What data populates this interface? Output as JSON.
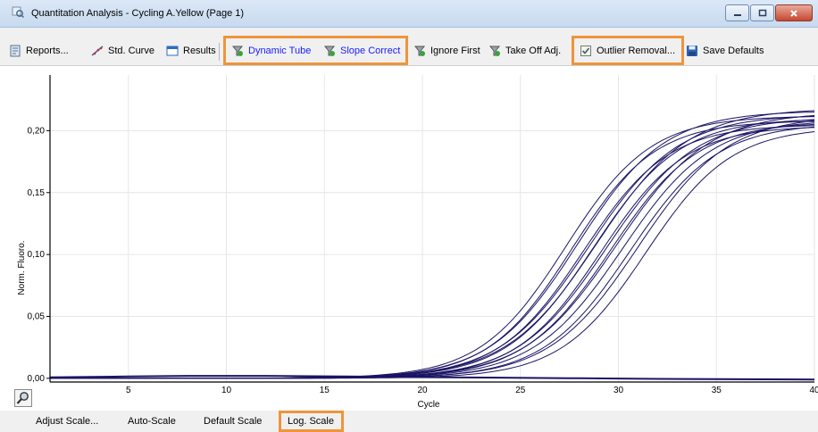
{
  "window": {
    "title": "Quantitation Analysis - Cycling A.Yellow (Page 1)"
  },
  "toolbar": {
    "reports": "Reports...",
    "std_curve": "Std. Curve",
    "results": "Results",
    "dynamic_tube": "Dynamic Tube",
    "slope_correct": "Slope Correct",
    "ignore_first": "Ignore First",
    "take_off_adj": "Take Off Adj.",
    "outlier_removal": "Outlier Removal...",
    "save_defaults": "Save Defaults"
  },
  "footer": {
    "adjust_scale": "Adjust Scale...",
    "auto_scale": "Auto-Scale",
    "default_scale": "Default Scale",
    "log_scale": "Log. Scale"
  },
  "colors": {
    "highlight": "#f0943a",
    "curve": "#1b1464",
    "active_toggle_text": "#1a1aff"
  },
  "chart_data": {
    "type": "line",
    "xlabel": "Cycle",
    "ylabel": "Norm. Fluoro.",
    "xlim": [
      1,
      40
    ],
    "ylim": [
      -0.003,
      0.245
    ],
    "xticks": [
      5,
      10,
      15,
      20,
      25,
      30,
      35,
      40
    ],
    "xtick_labels": [
      "5",
      "10",
      "15",
      "20",
      "25",
      "30",
      "35",
      "40"
    ],
    "yticks": [
      0.0,
      0.05,
      0.1,
      0.15,
      0.2
    ],
    "ytick_labels": [
      "0,00",
      "0,05",
      "0,10",
      "0,15",
      "0,20"
    ],
    "grid": true,
    "curve_params": [
      {
        "L": 0.212,
        "c": 27.3,
        "k": 0.46
      },
      {
        "L": 0.208,
        "c": 27.6,
        "k": 0.47
      },
      {
        "L": 0.216,
        "c": 27.9,
        "k": 0.45
      },
      {
        "L": 0.205,
        "c": 28.2,
        "k": 0.46
      },
      {
        "L": 0.213,
        "c": 28.5,
        "k": 0.44
      },
      {
        "L": 0.21,
        "c": 28.7,
        "k": 0.45
      },
      {
        "L": 0.218,
        "c": 28.9,
        "k": 0.43
      },
      {
        "L": 0.204,
        "c": 29.1,
        "k": 0.46
      },
      {
        "L": 0.211,
        "c": 29.4,
        "k": 0.44
      },
      {
        "L": 0.207,
        "c": 29.6,
        "k": 0.45
      },
      {
        "L": 0.215,
        "c": 29.9,
        "k": 0.43
      },
      {
        "L": 0.209,
        "c": 30.2,
        "k": 0.44
      },
      {
        "L": 0.206,
        "c": 30.6,
        "k": 0.45
      },
      {
        "L": 0.212,
        "c": 31.0,
        "k": 0.44
      },
      {
        "L": 0.203,
        "c": 31.4,
        "k": 0.46
      }
    ],
    "flat_series": [
      {
        "name": "baseline",
        "x": [
          1,
          5,
          8,
          12,
          16,
          20,
          24,
          28,
          32,
          36,
          40
        ],
        "y": [
          0.0008,
          0.0015,
          0.002,
          0.002,
          0.0015,
          0.001,
          0.0005,
          0.0,
          -0.0005,
          -0.0008,
          -0.001
        ]
      }
    ]
  }
}
